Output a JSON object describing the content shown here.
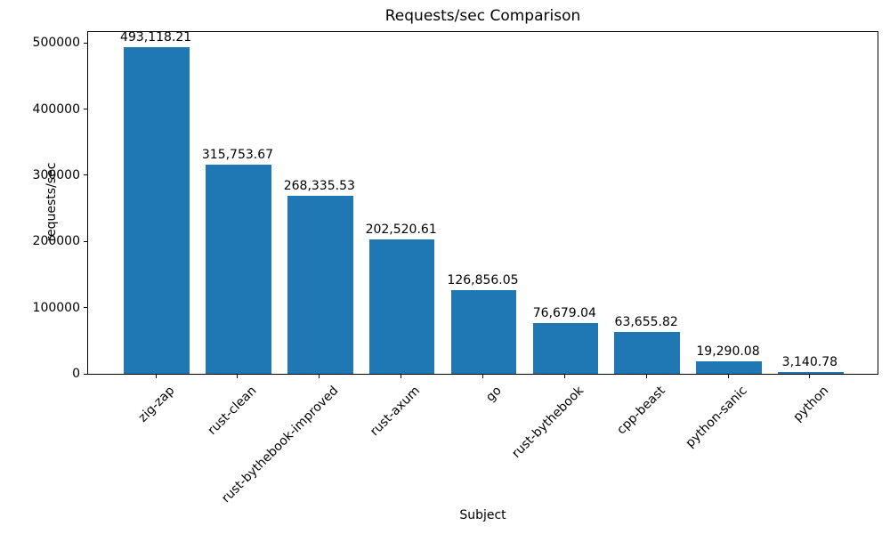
{
  "chart_data": {
    "type": "bar",
    "title": "Requests/sec Comparison",
    "xlabel": "Subject",
    "ylabel": "requests/sec",
    "categories": [
      "zig-zap",
      "rust-clean",
      "rust-bythebook-improved",
      "rust-axum",
      "go",
      "rust-bythebook",
      "cpp-beast",
      "python-sanic",
      "python"
    ],
    "values": [
      493118.21,
      315753.67,
      268335.53,
      202520.61,
      126856.05,
      76679.04,
      63655.82,
      19290.08,
      3140.78
    ],
    "value_labels": [
      "493,118.21",
      "315,753.67",
      "268,335.53",
      "202,520.61",
      "126,856.05",
      "76,679.04",
      "63,655.82",
      "19,290.08",
      "3,140.78"
    ],
    "yticks": [
      0,
      100000,
      200000,
      300000,
      400000,
      500000
    ],
    "ytick_labels": [
      "0",
      "100000",
      "200000",
      "300000",
      "400000",
      "500000"
    ],
    "ylim": [
      0,
      517774
    ],
    "grid": false,
    "legend": "none",
    "bar_color": "#1f77b4",
    "axis_color": "#000000",
    "background_color": "#ffffff"
  }
}
